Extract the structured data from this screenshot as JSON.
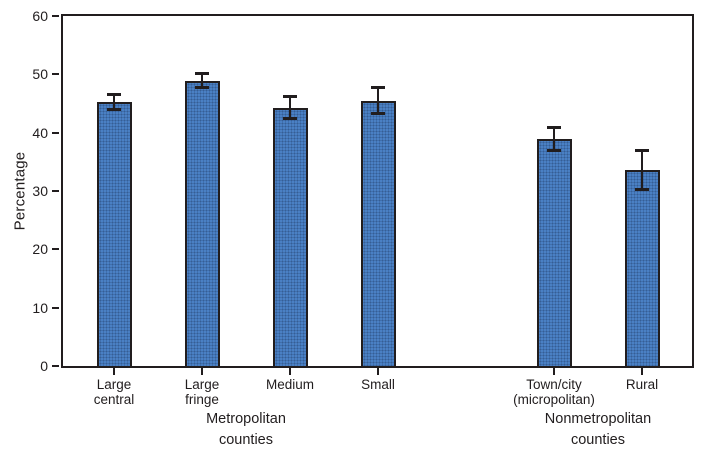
{
  "chart_data": {
    "type": "bar",
    "title": "",
    "xlabel": "",
    "ylabel": "Percentage",
    "ylim": [
      0,
      60
    ],
    "yticks": [
      0,
      10,
      20,
      30,
      40,
      50,
      60
    ],
    "grid": false,
    "legend_position": "none",
    "bar_color": "#4a80c4",
    "outline_color": "#211d1e",
    "error_bar_color": "#211d1e",
    "categories": [
      "Large central",
      "Large fringe",
      "Medium",
      "Small",
      "Town/city (micropolitan)",
      "Rural"
    ],
    "category_label_lines": [
      [
        "Large",
        "central"
      ],
      [
        "Large",
        "fringe"
      ],
      [
        "Medium"
      ],
      [
        "Small"
      ],
      [
        "Town/city",
        "(micropolitan)"
      ],
      [
        "Rural"
      ]
    ],
    "groups": [
      {
        "label": "Metropolitan counties",
        "label_lines": [
          "Metropolitan",
          "counties"
        ],
        "category_indices": [
          0,
          1,
          2,
          3
        ]
      },
      {
        "label": "Nonmetropolitan counties",
        "label_lines": [
          "Nonmetropolitan",
          "counties"
        ],
        "category_indices": [
          4,
          5
        ]
      }
    ],
    "values": [
      45.3,
      48.9,
      44.3,
      45.5,
      38.9,
      33.6
    ],
    "errors": [
      1.2,
      1.1,
      1.8,
      2.2,
      1.9,
      3.3
    ]
  }
}
